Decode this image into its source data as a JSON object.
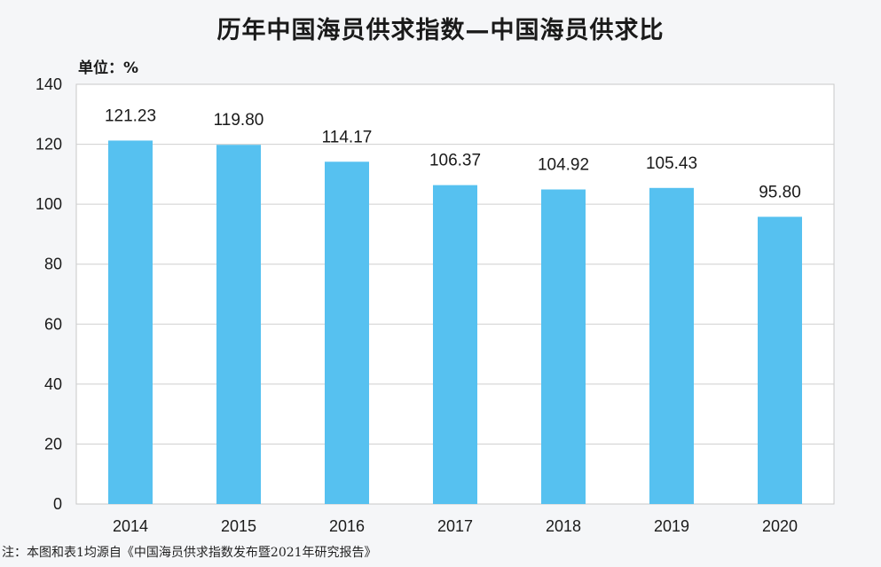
{
  "chart_data": {
    "type": "bar",
    "title": "历年中国海员供求指数—中国海员供求比",
    "unit_label": "单位：%",
    "categories": [
      "2014",
      "2015",
      "2016",
      "2017",
      "2018",
      "2019",
      "2020"
    ],
    "values": [
      121.23,
      119.8,
      114.17,
      106.37,
      104.92,
      105.43,
      95.8
    ],
    "data_labels": [
      "121.23",
      "119.80",
      "114.17",
      "106.37",
      "104.92",
      "105.43",
      "95.80"
    ],
    "ylim": [
      0,
      140
    ],
    "yticks": [
      0,
      20,
      40,
      60,
      80,
      100,
      120,
      140
    ],
    "grid": true,
    "bar_color": "#56c1f0"
  },
  "footnote": "注：本图和表1均源自《中国海员供求指数发布暨2021年研究报告》"
}
